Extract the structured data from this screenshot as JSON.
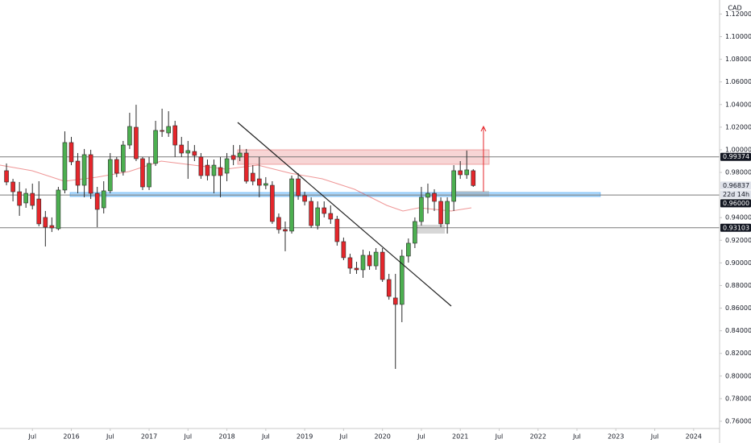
{
  "chart_data": {
    "type": "candlestick",
    "currency": "CAD",
    "countdown": "22d 14h",
    "up_color": "#4caf50",
    "down_color": "#e5262b",
    "grid": false,
    "x": [
      "2015-03",
      "2015-04",
      "2015-05",
      "2015-06",
      "2015-07",
      "2015-08",
      "2015-09",
      "2015-10",
      "2015-11",
      "2015-12",
      "2016-01",
      "2016-02",
      "2016-03",
      "2016-04",
      "2016-05",
      "2016-06",
      "2016-07",
      "2016-08",
      "2016-09",
      "2016-10",
      "2016-11",
      "2016-12",
      "2017-01",
      "2017-02",
      "2017-03",
      "2017-04",
      "2017-05",
      "2017-06",
      "2017-07",
      "2017-08",
      "2017-09",
      "2017-10",
      "2017-11",
      "2017-12",
      "2018-01",
      "2018-02",
      "2018-03",
      "2018-04",
      "2018-05",
      "2018-06",
      "2018-07",
      "2018-08",
      "2018-09",
      "2018-10",
      "2018-11",
      "2018-12",
      "2019-01",
      "2019-02",
      "2019-03",
      "2019-04",
      "2019-05",
      "2019-06",
      "2019-07",
      "2019-08",
      "2019-09",
      "2019-10",
      "2019-11",
      "2019-12",
      "2020-01",
      "2020-02",
      "2020-03",
      "2020-04",
      "2020-05",
      "2020-06",
      "2020-07",
      "2020-08",
      "2020-09",
      "2020-10",
      "2020-11",
      "2020-12",
      "2021-01",
      "2021-02",
      "2021-03"
    ],
    "open": [
      0.9815,
      0.9715,
      0.9629,
      0.953,
      0.9615,
      0.9565,
      0.9402,
      0.933,
      0.9302,
      0.9644,
      1.0064,
      0.99,
      0.9686,
      0.9957,
      0.9615,
      0.9487,
      0.9637,
      0.9914,
      0.9807,
      1.0042,
      1.0199,
      0.9921,
      0.9672,
      0.9879,
      1.0171,
      1.0149,
      1.0213,
      1.0042,
      0.9971,
      0.9985,
      0.9936,
      0.9864,
      0.9772,
      0.9843,
      0.9793,
      0.995,
      0.9936,
      0.9971,
      0.9793,
      0.9743,
      0.9686,
      0.9686,
      0.9402,
      0.9295,
      0.9281,
      0.9743,
      0.9594,
      0.9544,
      0.933,
      0.9487,
      0.9437,
      0.9387,
      0.9188,
      0.9046,
      0.8953,
      0.8939,
      0.9067,
      0.8974,
      0.9095,
      0.8853,
      0.869,
      0.8633,
      0.906,
      0.9174,
      0.9366,
      0.958,
      0.9615,
      0.9544,
      0.9345,
      0.9544,
      0.9815,
      0.9779,
      0.9815
    ],
    "high": [
      0.9879,
      0.9743,
      0.9715,
      0.9658,
      0.9701,
      0.9722,
      0.9459,
      0.9402,
      0.9672,
      1.0163,
      1.0114,
      0.9971,
      1.0007,
      1.0,
      0.9672,
      0.9722,
      0.9971,
      0.9936,
      1.0078,
      1.0327,
      1.0398,
      0.9936,
      0.9936,
      1.0256,
      1.0363,
      1.0341,
      1.0256,
      1.0114,
      1.0078,
      1.0042,
      0.9971,
      0.9914,
      0.9914,
      0.9936,
      0.9971,
      1.0042,
      1.0042,
      1.0007,
      0.9864,
      0.9936,
      0.9758,
      0.9722,
      0.9437,
      0.9366,
      0.9772,
      0.9793,
      0.9629,
      0.958,
      0.9544,
      0.9544,
      0.9508,
      0.9416,
      0.9224,
      0.9081,
      0.901,
      0.9117,
      0.9103,
      0.9131,
      0.9131,
      0.8903,
      0.8903,
      0.9117,
      0.9216,
      0.9402,
      0.9672,
      0.9701,
      0.9651,
      0.958,
      0.958,
      0.9864,
      0.99,
      0.9993,
      0.9829
    ],
    "low": [
      0.9686,
      0.9544,
      0.9416,
      0.9487,
      0.9473,
      0.9323,
      0.9145,
      0.9273,
      0.9288,
      0.9615,
      0.9864,
      0.9615,
      0.958,
      0.9565,
      0.9316,
      0.9437,
      0.9615,
      0.9758,
      0.9772,
      1.0007,
      0.99,
      0.9644,
      0.9644,
      0.9857,
      1.0114,
      1.0114,
      0.9936,
      0.9936,
      0.9743,
      0.99,
      0.9743,
      0.9729,
      0.9615,
      0.958,
      0.9722,
      0.9864,
      0.99,
      0.9701,
      0.9686,
      0.958,
      0.9651,
      0.9345,
      0.9259,
      0.9103,
      0.9259,
      0.9558,
      0.9508,
      0.9309,
      0.9295,
      0.9402,
      0.9345,
      0.9152,
      0.9024,
      0.8903,
      0.8903,
      0.8868,
      0.8939,
      0.8939,
      0.8832,
      0.8675,
      0.8063,
      0.8476,
      0.9003,
      0.9131,
      0.933,
      0.9437,
      0.9459,
      0.9316,
      0.9259,
      0.9459,
      0.9743,
      0.9743,
      0.9672
    ],
    "close": [
      0.9715,
      0.9629,
      0.9508,
      0.9615,
      0.9508,
      0.9345,
      0.9316,
      0.9309,
      0.9644,
      1.0064,
      0.9893,
      0.9686,
      0.9957,
      0.9615,
      0.9473,
      0.9637,
      0.9914,
      0.9793,
      1.0042,
      1.0206,
      0.9921,
      0.9672,
      0.9879,
      1.0171,
      1.0163,
      1.0206,
      1.0042,
      0.9971,
      0.9993,
      0.995,
      0.9772,
      0.9772,
      0.9864,
      0.9772,
      0.9921,
      0.9914,
      0.9971,
      0.9722,
      0.9722,
      0.9686,
      0.9701,
      0.9366,
      0.9295,
      0.9281,
      0.9743,
      0.9594,
      0.9544,
      0.933,
      0.9487,
      0.9437,
      0.9387,
      0.9188,
      0.9046,
      0.8953,
      0.8939,
      0.9067,
      0.8974,
      0.9095,
      0.8853,
      0.8704,
      0.8633,
      0.906,
      0.9174,
      0.9366,
      0.958,
      0.9615,
      0.9544,
      0.9345,
      0.9544,
      0.9815,
      0.9779,
      0.9822,
      0.96837
    ],
    "xlim": [
      "2015-02",
      "2024-05"
    ],
    "xticks": [
      {
        "value": "2015-07",
        "label": "Jul"
      },
      {
        "value": "2016-01",
        "label": "2016"
      },
      {
        "value": "2016-07",
        "label": "Jul"
      },
      {
        "value": "2017-01",
        "label": "2017"
      },
      {
        "value": "2017-07",
        "label": "Jul"
      },
      {
        "value": "2018-01",
        "label": "2018"
      },
      {
        "value": "2018-07",
        "label": "Jul"
      },
      {
        "value": "2019-01",
        "label": "2019"
      },
      {
        "value": "2019-07",
        "label": "Jul"
      },
      {
        "value": "2020-01",
        "label": "2020"
      },
      {
        "value": "2020-07",
        "label": "Jul"
      },
      {
        "value": "2021-01",
        "label": "2021"
      },
      {
        "value": "2021-07",
        "label": "Jul"
      },
      {
        "value": "2022-01",
        "label": "2022"
      },
      {
        "value": "2022-07",
        "label": "Jul"
      },
      {
        "value": "2023-01",
        "label": "2023"
      },
      {
        "value": "2023-07",
        "label": "Jul"
      },
      {
        "value": "2024-01",
        "label": "2024"
      }
    ],
    "ylim": [
      0.7536,
      1.1324
    ],
    "yticks": [
      {
        "value": 0.76,
        "label": "0.76000"
      },
      {
        "value": 0.78,
        "label": "0.78000"
      },
      {
        "value": 0.8,
        "label": "0.80000"
      },
      {
        "value": 0.82,
        "label": "0.82000"
      },
      {
        "value": 0.84,
        "label": "0.84000"
      },
      {
        "value": 0.86,
        "label": "0.86000"
      },
      {
        "value": 0.88,
        "label": "0.88000"
      },
      {
        "value": 0.9,
        "label": "0.90000"
      },
      {
        "value": 0.92,
        "label": "0.92000"
      },
      {
        "value": 0.94,
        "label": "0.94000"
      },
      {
        "value": 0.98,
        "label": "0.98000"
      },
      {
        "value": 1.0,
        "label": "1.00000"
      },
      {
        "value": 1.02,
        "label": "1.02000"
      },
      {
        "value": 1.04,
        "label": "1.04000"
      },
      {
        "value": 1.06,
        "label": "1.06000"
      },
      {
        "value": 1.08,
        "label": "1.08000"
      },
      {
        "value": 1.1,
        "label": "1.10000"
      },
      {
        "value": 1.12,
        "label": "1.12000"
      }
    ],
    "levels": [
      0.99374,
      {
        "value": 0.96,
        "label": "0.96000"
      },
      0.93103
    ]
  }
}
